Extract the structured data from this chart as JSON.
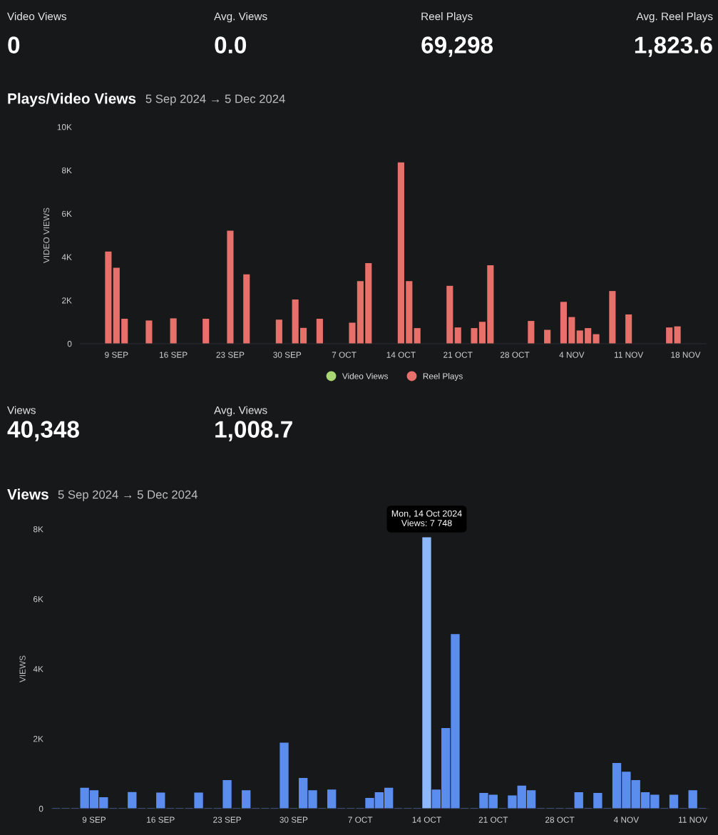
{
  "chart_data": [
    {
      "type": "other",
      "annotations": [
        "Video Views",
        "0",
        "Avg. Views",
        "0.0",
        "Reel Plays",
        "69,298",
        "Avg. Reel Plays",
        "1,823.6"
      ]
    },
    {
      "type": "bar",
      "title": "Plays/Video Views",
      "subtitle": "5 Sep 2024 → 5 Dec 2024",
      "ylabel": "VIDEO VIEWS",
      "xlim": [
        "2024-09-04T12:00",
        "2024-11-20T12:00"
      ],
      "xticks": [
        {
          "value": "2024-09-09",
          "label": "9 SEP"
        },
        {
          "value": "2024-09-16",
          "label": "16 SEP"
        },
        {
          "value": "2024-09-23",
          "label": "23 SEP"
        },
        {
          "value": "2024-09-30",
          "label": "30 SEP"
        },
        {
          "value": "2024-10-07",
          "label": "7 OCT"
        },
        {
          "value": "2024-10-14",
          "label": "14 OCT"
        },
        {
          "value": "2024-10-21",
          "label": "21 OCT"
        },
        {
          "value": "2024-10-28",
          "label": "28 OCT"
        },
        {
          "value": "2024-11-04",
          "label": "4 NOV"
        },
        {
          "value": "2024-11-11",
          "label": "11 NOV"
        },
        {
          "value": "2024-11-18",
          "label": "18 NOV"
        }
      ],
      "ylim": [
        0,
        10000
      ],
      "yticks": [
        0,
        {
          "value": 2000,
          "label": "2K"
        },
        {
          "value": 4000,
          "label": "4K"
        },
        {
          "value": 6000,
          "label": "6K"
        },
        {
          "value": 8000,
          "label": "8K"
        },
        {
          "value": 10000,
          "label": "10K"
        }
      ],
      "grid": false,
      "legend": "bottom",
      "series": [
        {
          "name": "Video Views",
          "color": "#a8d672",
          "x": [
            "2024-09-08",
            "2024-09-09",
            "2024-09-10",
            "2024-09-13",
            "2024-09-16",
            "2024-09-20",
            "2024-09-23",
            "2024-09-25",
            "2024-09-29",
            "2024-10-01",
            "2024-10-02",
            "2024-10-04",
            "2024-10-08",
            "2024-10-09",
            "2024-10-10",
            "2024-10-14",
            "2024-10-15",
            "2024-10-16",
            "2024-10-20",
            "2024-10-21",
            "2024-10-23",
            "2024-10-24",
            "2024-10-25",
            "2024-10-30",
            "2024-11-01",
            "2024-11-03",
            "2024-11-04",
            "2024-11-05",
            "2024-11-06",
            "2024-11-07",
            "2024-11-09",
            "2024-11-11",
            "2024-11-16",
            "2024-11-17"
          ],
          "values": [
            0,
            0,
            0,
            0,
            0,
            0,
            0,
            0,
            0,
            0,
            0,
            0,
            0,
            0,
            0,
            0,
            0,
            0,
            0,
            0,
            0,
            0,
            0,
            0,
            0,
            0,
            0,
            0,
            0,
            0,
            0,
            0,
            0,
            0
          ]
        },
        {
          "name": "Reel Plays",
          "color": "#e8706a",
          "x": [
            "2024-09-08",
            "2024-09-09",
            "2024-09-10",
            "2024-09-13",
            "2024-09-16",
            "2024-09-20",
            "2024-09-23",
            "2024-09-25",
            "2024-09-29",
            "2024-10-01",
            "2024-10-02",
            "2024-10-04",
            "2024-10-08",
            "2024-10-09",
            "2024-10-10",
            "2024-10-14",
            "2024-10-15",
            "2024-10-16",
            "2024-10-20",
            "2024-10-21",
            "2024-10-23",
            "2024-10-24",
            "2024-10-25",
            "2024-10-30",
            "2024-11-01",
            "2024-11-03",
            "2024-11-04",
            "2024-11-05",
            "2024-11-06",
            "2024-11-07",
            "2024-11-09",
            "2024-11-11",
            "2024-11-16",
            "2024-11-17"
          ],
          "values": [
            4250,
            3500,
            1150,
            1070,
            1170,
            1150,
            5210,
            3200,
            1110,
            2040,
            730,
            1150,
            970,
            2890,
            3720,
            8360,
            2890,
            720,
            2670,
            750,
            720,
            1010,
            3620,
            1050,
            640,
            1930,
            1230,
            610,
            720,
            440,
            2430,
            1350,
            750,
            800
          ]
        }
      ]
    },
    {
      "type": "other",
      "annotations": [
        "Views",
        "40,348",
        "Avg. Views",
        "1,008.7"
      ]
    },
    {
      "type": "bar",
      "title": "Views",
      "subtitle": "5 Sep 2024 → 5 Dec 2024",
      "ylabel": "VIEWS",
      "xlim": [
        "2024-09-04T12:00",
        "2024-11-12T18:00"
      ],
      "xticks": [
        {
          "value": "2024-09-09",
          "label": "9 SEP"
        },
        {
          "value": "2024-09-16",
          "label": "16 SEP"
        },
        {
          "value": "2024-09-23",
          "label": "23 SEP"
        },
        {
          "value": "2024-09-30",
          "label": "30 SEP"
        },
        {
          "value": "2024-10-07",
          "label": "7 OCT"
        },
        {
          "value": "2024-10-14",
          "label": "14 OCT"
        },
        {
          "value": "2024-10-21",
          "label": "21 OCT"
        },
        {
          "value": "2024-10-28",
          "label": "28 OCT"
        },
        {
          "value": "2024-11-04",
          "label": "4 NOV"
        },
        {
          "value": "2024-11-11",
          "label": "11 NOV"
        }
      ],
      "ylim": [
        0,
        8000
      ],
      "yticks": [
        0,
        {
          "value": 2000,
          "label": "2K"
        },
        {
          "value": 4000,
          "label": "4K"
        },
        {
          "value": 6000,
          "label": "6K"
        },
        {
          "value": 8000,
          "label": "8K"
        }
      ],
      "grid": false,
      "annotations": [
        {
          "text": "Mon, 14 Oct 2024\nViews: 7 748",
          "x": "2024-10-14",
          "y": 7748
        }
      ],
      "series": [
        {
          "x": [
            "2024-09-05",
            "2024-09-06",
            "2024-09-07",
            "2024-09-08",
            "2024-09-09",
            "2024-09-10",
            "2024-09-11",
            "2024-09-12",
            "2024-09-13",
            "2024-09-14",
            "2024-09-15",
            "2024-09-16",
            "2024-09-17",
            "2024-09-18",
            "2024-09-19",
            "2024-09-20",
            "2024-09-21",
            "2024-09-22",
            "2024-09-23",
            "2024-09-24",
            "2024-09-25",
            "2024-09-26",
            "2024-09-27",
            "2024-09-28",
            "2024-09-29",
            "2024-09-30",
            "2024-10-01",
            "2024-10-02",
            "2024-10-03",
            "2024-10-04",
            "2024-10-05",
            "2024-10-06",
            "2024-10-07",
            "2024-10-08",
            "2024-10-09",
            "2024-10-10",
            "2024-10-11",
            "2024-10-12",
            "2024-10-13",
            "2024-10-14",
            "2024-10-15",
            "2024-10-16",
            "2024-10-17",
            "2024-10-18",
            "2024-10-19",
            "2024-10-20",
            "2024-10-21",
            "2024-10-22",
            "2024-10-23",
            "2024-10-24",
            "2024-10-25",
            "2024-10-26",
            "2024-10-27",
            "2024-10-28",
            "2024-10-29",
            "2024-10-30",
            "2024-10-31",
            "2024-11-01",
            "2024-11-02",
            "2024-11-03",
            "2024-11-04",
            "2024-11-05",
            "2024-11-06",
            "2024-11-07",
            "2024-11-08",
            "2024-11-09",
            "2024-11-10",
            "2024-11-11",
            "2024-11-12"
          ],
          "values": [
            0,
            0,
            0,
            580,
            510,
            310,
            0,
            0,
            460,
            0,
            0,
            440,
            0,
            0,
            0,
            440,
            0,
            0,
            800,
            0,
            510,
            0,
            0,
            0,
            1870,
            0,
            860,
            510,
            0,
            530,
            0,
            0,
            0,
            290,
            450,
            580,
            0,
            0,
            0,
            7748,
            530,
            2290,
            4980,
            0,
            0,
            430,
            380,
            0,
            360,
            640,
            510,
            0,
            0,
            0,
            0,
            450,
            0,
            430,
            0,
            1290,
            1040,
            800,
            450,
            380,
            0,
            380,
            0,
            510,
            0
          ],
          "colors": [
            "#5b8def",
            "#5b8def",
            "#5b8def",
            "#5b8def",
            "#5b8def",
            "#5b8def",
            "#5b8def",
            "#5b8def",
            "#5b8def",
            "#5b8def",
            "#5b8def",
            "#5b8def",
            "#5b8def",
            "#5b8def",
            "#5b8def",
            "#5b8def",
            "#5b8def",
            "#5b8def",
            "#5b8def",
            "#5b8def",
            "#5b8def",
            "#5b8def",
            "#5b8def",
            "#5b8def",
            "#5b8def",
            "#5b8def",
            "#5b8def",
            "#5b8def",
            "#5b8def",
            "#5b8def",
            "#5b8def",
            "#5b8def",
            "#5b8def",
            "#5b8def",
            "#5b8def",
            "#5b8def",
            "#5b8def",
            "#5b8def",
            "#5b8def",
            "#8db8fb",
            "#5b8def",
            "#5b8def",
            "#5b8def",
            "#5b8def",
            "#5b8def",
            "#5b8def",
            "#5b8def",
            "#5b8def",
            "#5b8def",
            "#5b8def",
            "#5b8def",
            "#5b8def",
            "#5b8def",
            "#5b8def",
            "#5b8def",
            "#5b8def",
            "#5b8def",
            "#5b8def",
            "#5b8def",
            "#5b8def",
            "#5b8def",
            "#5b8def",
            "#5b8def",
            "#5b8def",
            "#5b8def",
            "#5b8def",
            "#5b8def",
            "#5b8def",
            "#5b8def"
          ]
        }
      ]
    }
  ]
}
